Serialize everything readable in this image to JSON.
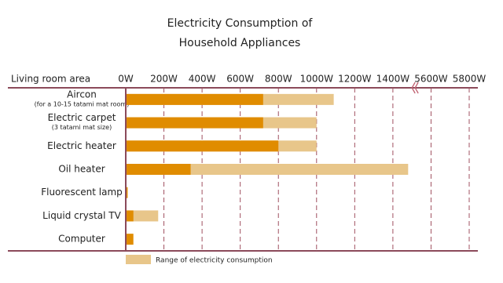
{
  "chart_data": {
    "type": "range_bar",
    "title": [
      "Electricity Consumption of",
      "Household Appliances"
    ],
    "header": "Living room area",
    "categories": [
      "Aircon",
      "Electric carpet",
      "Electric heater",
      "Oil heater",
      "Fluorescent lamp",
      "Liquid crystal TV",
      "Computer"
    ],
    "category_notes": [
      "(for a 10-15 tatami mat room)",
      "(3 tatami mat size)",
      null,
      null,
      null,
      null,
      null
    ],
    "values": [
      720,
      720,
      800,
      340,
      10,
      40,
      40
    ],
    "color": "#e08c00",
    "series": [
      {
        "name": "Range of electricity consumption",
        "color": "#e8c68a",
        "values": [
          1090,
          1000,
          1000,
          1480,
          null,
          170,
          null
        ]
      }
    ],
    "xlim": [
      0,
      5800
    ],
    "axis_break": [
      1500,
      5500
    ],
    "xticks": [
      {
        "value": 0,
        "label": "0W"
      },
      {
        "value": 200,
        "label": "200W"
      },
      {
        "value": 400,
        "label": "400W"
      },
      {
        "value": 600,
        "label": "600W"
      },
      {
        "value": 800,
        "label": "800W"
      },
      {
        "value": 1000,
        "label": "1000W"
      },
      {
        "value": 1200,
        "label": "1200W"
      },
      {
        "value": 1400,
        "label": "1400W"
      },
      {
        "value": 5600,
        "label": "5600W"
      },
      {
        "value": 5800,
        "label": "5800W"
      }
    ],
    "grid": true
  }
}
